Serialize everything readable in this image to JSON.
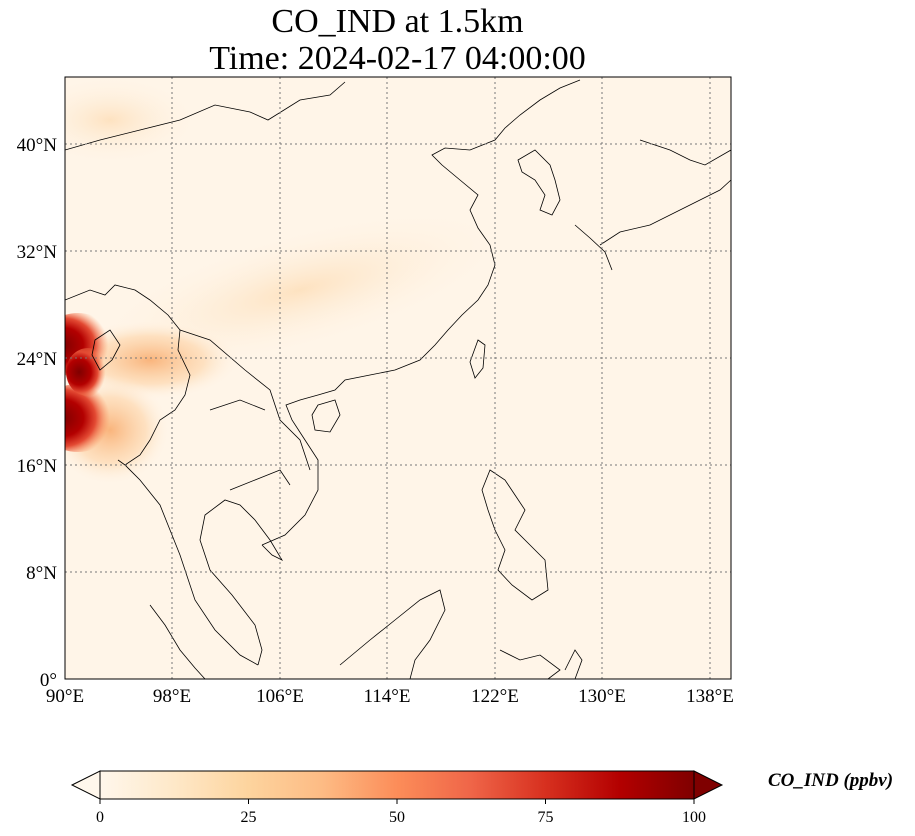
{
  "title": {
    "line1": "CO_IND at 1.5km",
    "line2": "Time: 2024-02-17 04:00:00"
  },
  "map": {
    "lon_range": [
      90,
      139.5
    ],
    "lat_range": [
      0,
      45
    ],
    "lon_ticks": [
      "90°E",
      "98°E",
      "106°E",
      "114°E",
      "122°E",
      "130°E",
      "138°E"
    ],
    "lat_ticks": [
      "0°",
      "8°N",
      "16°N",
      "24°N",
      "32°N",
      "40°N"
    ],
    "gridline_style": "dotted"
  },
  "colorbar": {
    "label": "CO_IND (ppbv)",
    "ticks": [
      "0",
      "25",
      "50",
      "75",
      "100"
    ],
    "range": [
      0,
      100
    ],
    "extend": "both",
    "colormap": "OrRd",
    "colors": [
      "#fff7ec",
      "#fee8c8",
      "#fdd49e",
      "#fdbb84",
      "#fc8d59",
      "#ef6548",
      "#d7301f",
      "#b30000",
      "#7f0000"
    ]
  },
  "field": {
    "name": "CO_IND",
    "background_color": "#fff5e8",
    "hotspot_region": "western Myanmar / Bangladesh, ~19–26°N, 90–94°E",
    "hotspot_max": 100
  }
}
